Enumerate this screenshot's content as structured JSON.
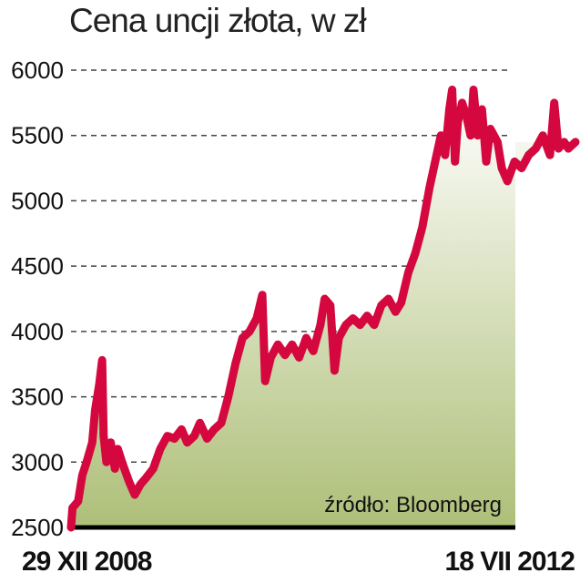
{
  "chart_data": {
    "type": "area",
    "title": "Cena uncji złota, w zł",
    "source": "źródło: Bloomberg",
    "xlabel": "",
    "ylabel": "",
    "ylim": [
      2500,
      6000
    ],
    "yticks": [
      2500,
      3000,
      3500,
      4000,
      4500,
      5000,
      5500,
      6000
    ],
    "grid": "horizontal dashed",
    "x_start_label": "29 XII 2008",
    "x_end_label": "18 VII 2012",
    "x_range": [
      "2008-12-29",
      "2012-07-18"
    ],
    "colors": {
      "line": "#d4083f",
      "fill_top": "#ffffff",
      "fill_bottom": "#aebf78",
      "grid": "#444444",
      "baseline": "#000000"
    },
    "series": [
      {
        "values": [
          [
            2008.99,
            2500
          ],
          [
            2009.0,
            2650
          ],
          [
            2009.04,
            2700
          ],
          [
            2009.07,
            2900
          ],
          [
            2009.1,
            3000
          ],
          [
            2009.14,
            3150
          ],
          [
            2009.16,
            3400
          ],
          [
            2009.19,
            3600
          ],
          [
            2009.21,
            3780
          ],
          [
            2009.22,
            3200
          ],
          [
            2009.24,
            3000
          ],
          [
            2009.27,
            3150
          ],
          [
            2009.3,
            2950
          ],
          [
            2009.32,
            3100
          ],
          [
            2009.35,
            3000
          ],
          [
            2009.4,
            2850
          ],
          [
            2009.44,
            2750
          ],
          [
            2009.48,
            2830
          ],
          [
            2009.52,
            2880
          ],
          [
            2009.57,
            2950
          ],
          [
            2009.62,
            3100
          ],
          [
            2009.67,
            3200
          ],
          [
            2009.72,
            3180
          ],
          [
            2009.77,
            3250
          ],
          [
            2009.81,
            3150
          ],
          [
            2009.86,
            3200
          ],
          [
            2009.9,
            3300
          ],
          [
            2009.95,
            3180
          ],
          [
            2010.0,
            3250
          ],
          [
            2010.05,
            3300
          ],
          [
            2010.1,
            3500
          ],
          [
            2010.15,
            3750
          ],
          [
            2010.2,
            3950
          ],
          [
            2010.25,
            4000
          ],
          [
            2010.3,
            4100
          ],
          [
            2010.34,
            4280
          ],
          [
            2010.36,
            3620
          ],
          [
            2010.4,
            3800
          ],
          [
            2010.45,
            3900
          ],
          [
            2010.5,
            3820
          ],
          [
            2010.55,
            3900
          ],
          [
            2010.6,
            3800
          ],
          [
            2010.65,
            3950
          ],
          [
            2010.7,
            3850
          ],
          [
            2010.75,
            4050
          ],
          [
            2010.78,
            4250
          ],
          [
            2010.82,
            4200
          ],
          [
            2010.85,
            3700
          ],
          [
            2010.88,
            3950
          ],
          [
            2010.93,
            4050
          ],
          [
            2010.98,
            4100
          ],
          [
            2011.03,
            4050
          ],
          [
            2011.08,
            4120
          ],
          [
            2011.13,
            4050
          ],
          [
            2011.18,
            4200
          ],
          [
            2011.23,
            4250
          ],
          [
            2011.28,
            4150
          ],
          [
            2011.32,
            4220
          ],
          [
            2011.37,
            4450
          ],
          [
            2011.42,
            4600
          ],
          [
            2011.47,
            4800
          ],
          [
            2011.52,
            5100
          ],
          [
            2011.56,
            5300
          ],
          [
            2011.6,
            5500
          ],
          [
            2011.63,
            5350
          ],
          [
            2011.66,
            5700
          ],
          [
            2011.68,
            5850
          ],
          [
            2011.7,
            5300
          ],
          [
            2011.72,
            5600
          ],
          [
            2011.75,
            5750
          ],
          [
            2011.78,
            5650
          ],
          [
            2011.81,
            5500
          ],
          [
            2011.83,
            5850
          ],
          [
            2011.86,
            5500
          ],
          [
            2011.89,
            5700
          ],
          [
            2011.92,
            5300
          ],
          [
            2011.95,
            5550
          ],
          [
            2012.0,
            5450
          ],
          [
            2012.03,
            5250
          ],
          [
            2012.07,
            5150
          ],
          [
            2012.12,
            5300
          ],
          [
            2012.17,
            5250
          ],
          [
            2012.22,
            5350
          ],
          [
            2012.27,
            5400
          ],
          [
            2012.32,
            5500
          ],
          [
            2012.37,
            5350
          ],
          [
            2012.4,
            5750
          ],
          [
            2012.43,
            5400
          ],
          [
            2012.47,
            5450
          ],
          [
            2012.5,
            5400
          ],
          [
            2012.55,
            5450
          ]
        ]
      }
    ]
  }
}
